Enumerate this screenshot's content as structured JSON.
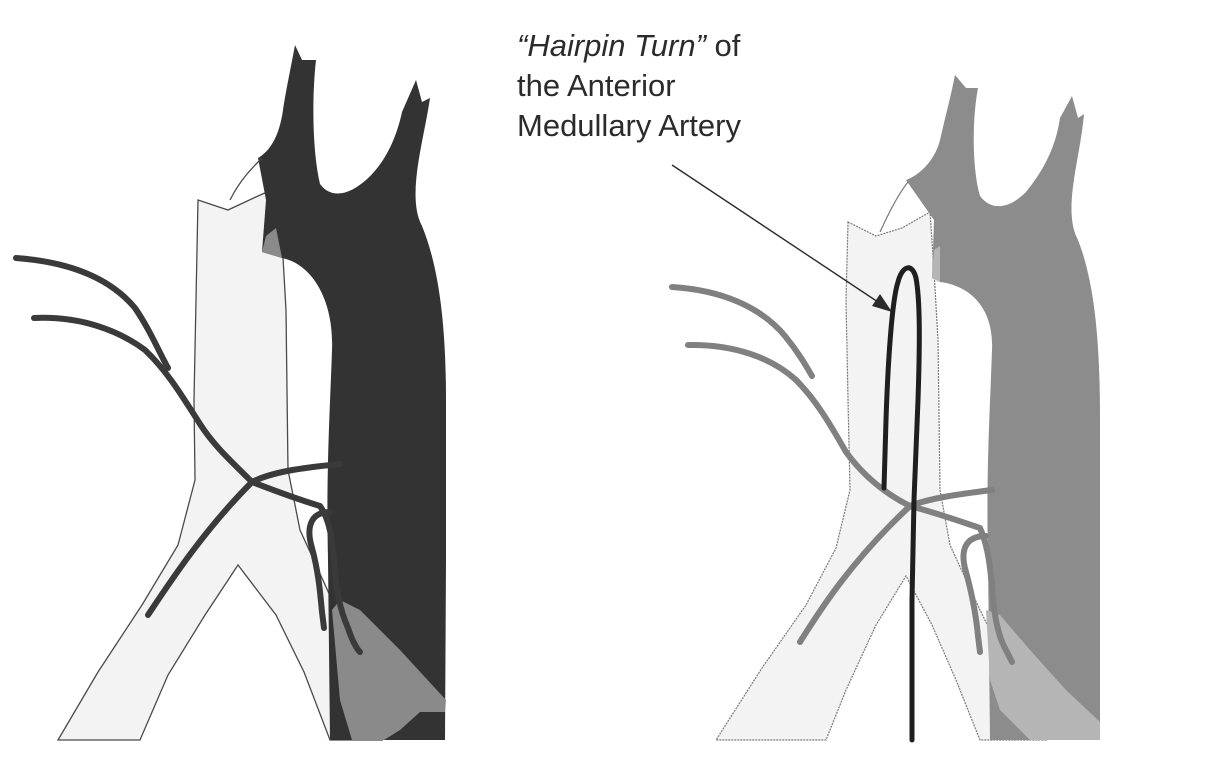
{
  "callout": {
    "quoted_term": "“Hairpin Turn”",
    "line1_rest": " of",
    "line2": "the Anterior",
    "line3": "Medullary Artery"
  },
  "colors": {
    "background": "#ffffff",
    "light_structure": "#f3f3f3",
    "outline": "#4a4a4a",
    "dark_vessel_left": "#333333",
    "gray_vessel_right": "#8c8c8c",
    "overlap_left": "#8a8a8a",
    "overlap_right": "#b5b5b5",
    "artery_left": "#3a3a3a",
    "artery_right": "#808080",
    "hairpin_artery": "#1f1f1f",
    "text": "#2b2b2b"
  },
  "panels": [
    "left-panel",
    "right-panel"
  ]
}
